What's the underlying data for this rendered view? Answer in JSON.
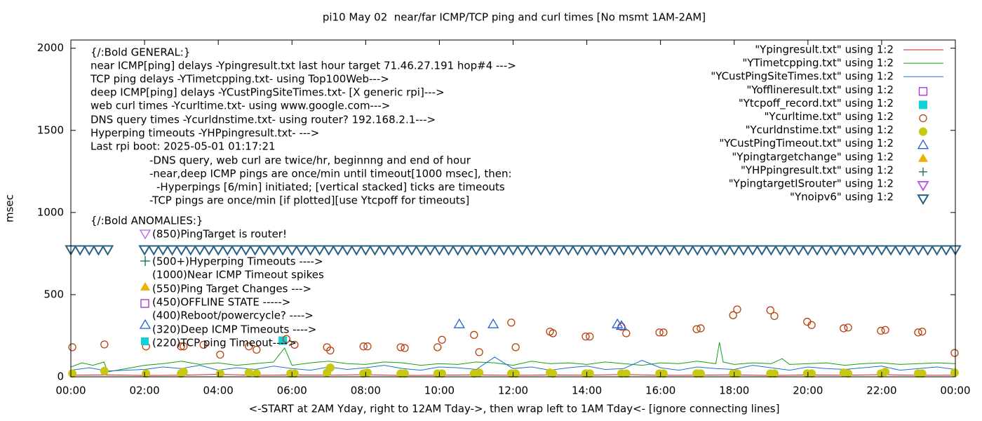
{
  "chart_data": {
    "type": "line",
    "title": "pi10 May 02  near/far ICMP/TCP ping and curl times [No msmt 1AM-2AM]",
    "xlabel": "<-START at 2AM Yday, right to 12AM Tday->, then wrap left to 1AM Tday<- [ignore connecting lines]",
    "ylabel": "msec",
    "xlim": [
      0,
      24
    ],
    "ylim": [
      0,
      2050
    ],
    "xticks": [
      {
        "value": 0,
        "label": "00:00"
      },
      {
        "value": 2,
        "label": "02:00"
      },
      {
        "value": 4,
        "label": "04:00"
      },
      {
        "value": 6,
        "label": "06:00"
      },
      {
        "value": 8,
        "label": "08:00"
      },
      {
        "value": 10,
        "label": "10:00"
      },
      {
        "value": 12,
        "label": "12:00"
      },
      {
        "value": 14,
        "label": "14:00"
      },
      {
        "value": 16,
        "label": "16:00"
      },
      {
        "value": 18,
        "label": "18:00"
      },
      {
        "value": 20,
        "label": "20:00"
      },
      {
        "value": 22,
        "label": "22:00"
      },
      {
        "value": 24,
        "label": "00:00"
      }
    ],
    "yticks": [
      0,
      500,
      1000,
      1500,
      2000
    ],
    "grid": false,
    "legend": "top-right",
    "annotations": [
      "{/:Bold GENERAL:}",
      "near ICMP[ping] delays -Ypingresult.txt last hour target 71.46.27.191 hop#4 --->",
      "TCP ping delays -YTimetcpping.txt- using Top100Web--->",
      "deep ICMP[ping] delays -YCustPingSiteTimes.txt- [X generic rpi]--->",
      "web curl times -Ycurltime.txt- using www.google.com--->",
      "DNS query times -Ycurldnstime.txt- using router? 192.168.2.1--->",
      "Hyperping timeouts -YHPpingresult.txt- --->",
      "Last rpi boot: 2025-05-01 01:17:21",
      "-DNS query, web curl are twice/hr, beginnng and end of hour",
      "-near,deep ICMP pings are once/min until timeout[1000 msec], then:",
      "-Hyperpings [6/min] initiated; [vertical stacked] ticks are timeouts",
      "-TCP pings are once/min [if plotted][use Ytcpoff for timeouts]",
      "{/:Bold ANOMALIES:}",
      "(850)PingTarget is router!",
      "(500+)Hyperping Timeouts ---->",
      "(1000)Near ICMP Timeout spikes",
      "(550)Ping Target Changes --->",
      "(450)OFFLINE STATE ----->",
      "(400)Reboot/powercycle? ---->",
      "(320)Deep ICMP Timeouts ---->",
      "(220)TCP ping Timeout---->"
    ],
    "series": [
      {
        "name": "\"Ypingresult.txt\" using 1:2",
        "color": "#d62020",
        "style": "line",
        "x": [
          0,
          1,
          2,
          3,
          4,
          5,
          6,
          7,
          8,
          9,
          10,
          11,
          12,
          13,
          14,
          15,
          16,
          17,
          18,
          19,
          20,
          21,
          22,
          23,
          24
        ],
        "values": [
          10,
          12,
          8,
          10,
          15,
          9,
          11,
          10,
          13,
          8,
          10,
          12,
          9,
          11,
          10,
          14,
          9,
          10,
          12,
          8,
          11,
          10,
          13,
          9,
          10
        ]
      },
      {
        "name": "\"YTimetcpping.txt\" using 1:2",
        "color": "#12a012",
        "style": "line",
        "x": [
          0,
          0.3,
          0.6,
          0.9,
          1.0,
          2.0,
          2.5,
          3,
          3.5,
          4,
          4.5,
          5,
          5.5,
          5.8,
          6,
          6.5,
          7,
          7.5,
          8,
          8.5,
          9,
          9.5,
          10,
          10.5,
          11,
          11.5,
          12,
          12.5,
          13,
          13.5,
          14,
          14.5,
          15,
          15.5,
          16,
          16.5,
          17,
          17.5,
          17.6,
          17.7,
          18,
          18.5,
          19,
          19.3,
          19.5,
          20,
          20.5,
          21,
          21.5,
          22,
          22.5,
          23,
          23.5,
          24
        ],
        "values": [
          60,
          85,
          70,
          90,
          30,
          70,
          80,
          95,
          75,
          85,
          70,
          80,
          90,
          175,
          70,
          85,
          95,
          80,
          75,
          90,
          85,
          70,
          80,
          75,
          90,
          85,
          70,
          95,
          80,
          85,
          75,
          90,
          80,
          70,
          85,
          80,
          95,
          80,
          210,
          90,
          75,
          85,
          80,
          110,
          75,
          80,
          85,
          70,
          80,
          85,
          75,
          80,
          85,
          80
        ]
      },
      {
        "name": "\"YCustPingSiteTimes.txt\" using 1:2",
        "color": "#1f6fd0",
        "style": "line",
        "x": [
          0,
          0.5,
          1,
          2,
          2.5,
          3,
          3.5,
          4,
          4.5,
          5,
          5.5,
          6,
          6.5,
          7,
          7.5,
          8,
          8.5,
          9,
          9.5,
          10,
          10.5,
          11,
          11.5,
          12,
          12.5,
          13,
          13.5,
          14,
          14.5,
          15,
          15.5,
          16,
          16.5,
          17,
          17.5,
          18,
          18.5,
          19,
          19.5,
          20,
          20.5,
          21,
          21.5,
          22,
          22.5,
          23,
          23.5,
          24
        ],
        "values": [
          40,
          55,
          35,
          45,
          60,
          50,
          70,
          40,
          55,
          45,
          65,
          50,
          40,
          60,
          45,
          55,
          70,
          50,
          40,
          60,
          55,
          45,
          120,
          50,
          60,
          40,
          55,
          65,
          45,
          50,
          100,
          55,
          40,
          60,
          50,
          45,
          70,
          55,
          40,
          60,
          50,
          45,
          55,
          65,
          40,
          50,
          60,
          45
        ]
      },
      {
        "name": "\"Yofflineresult.txt\" using 1:2",
        "color": "#9b30d0",
        "style": "points",
        "marker": "square-open",
        "x": [],
        "values": []
      },
      {
        "name": "\"Ytcpoff_record.txt\" using 1:2",
        "color": "#10d0d8",
        "style": "points",
        "marker": "square-filled",
        "x": [
          5.75
        ],
        "values": [
          220
        ]
      },
      {
        "name": "\"Ycurltime.txt\" using 1:2",
        "color": "#b8400e",
        "style": "points",
        "marker": "circle-open",
        "x": [
          0.04,
          0.91,
          2.04,
          2.99,
          3.06,
          3.6,
          4.05,
          4.83,
          5.04,
          5.85,
          6.07,
          6.95,
          7.04,
          7.94,
          8.05,
          8.95,
          9.06,
          9.95,
          10.07,
          10.94,
          11.08,
          11.95,
          12.07,
          13.0,
          13.08,
          13.97,
          14.08,
          14.94,
          15.07,
          15.97,
          16.08,
          16.98,
          17.09,
          17.97,
          18.08,
          18.98,
          19.09,
          19.98,
          20.1,
          20.97,
          21.09,
          21.98,
          22.1,
          22.99,
          23.1,
          23.98
        ],
        "values": [
          180,
          197,
          185,
          185,
          185,
          195,
          135,
          185,
          165,
          230,
          195,
          180,
          160,
          185,
          185,
          180,
          175,
          180,
          225,
          255,
          150,
          330,
          180,
          275,
          265,
          245,
          245,
          305,
          265,
          270,
          270,
          290,
          295,
          375,
          410,
          405,
          370,
          335,
          315,
          295,
          300,
          280,
          285,
          270,
          275,
          145
        ]
      },
      {
        "name": "\"Ycurldnstime.txt\" using 1:2",
        "color": "#c8c814",
        "style": "points",
        "marker": "circle-filled",
        "x": [
          0.04,
          0.91,
          2.04,
          2.99,
          3.06,
          4.05,
          4.83,
          5.04,
          5.96,
          6.07,
          6.95,
          7.04,
          7.94,
          8.05,
          8.95,
          9.06,
          9.95,
          10.07,
          10.94,
          11.08,
          11.95,
          12.07,
          13.0,
          13.08,
          13.97,
          14.08,
          14.94,
          15.07,
          15.97,
          16.08,
          16.98,
          17.09,
          17.97,
          18.08,
          18.98,
          19.09,
          19.98,
          20.1,
          20.97,
          21.09,
          21.98,
          22.1,
          22.99,
          23.1,
          23.98
        ],
        "values": [
          20,
          35,
          20,
          20,
          30,
          20,
          25,
          20,
          20,
          20,
          25,
          55,
          20,
          25,
          20,
          20,
          20,
          20,
          20,
          25,
          20,
          20,
          25,
          20,
          20,
          20,
          20,
          20,
          20,
          20,
          20,
          20,
          20,
          20,
          20,
          20,
          20,
          20,
          25,
          20,
          20,
          30,
          20,
          20,
          25
        ]
      },
      {
        "name": "\"YCustPingTimeout.txt\" using 1:2",
        "color": "#2a5cd0",
        "style": "points",
        "marker": "triangle-up-open",
        "x": [
          10.54,
          11.46,
          14.83,
          14.94
        ],
        "values": [
          320,
          320,
          320,
          310
        ]
      },
      {
        "name": "\"Ypingtargetchange\" using 1:2",
        "color": "#f0b000",
        "style": "points",
        "marker": "triangle-up-filled",
        "x": [],
        "values": []
      },
      {
        "name": "\"YHPpingresult.txt\" using 1:2",
        "color": "#0a6a3a",
        "style": "points",
        "marker": "plus",
        "x": [],
        "values": []
      },
      {
        "name": "\"YpingtargetISrouter\" using 1:2",
        "color": "#b860e8",
        "style": "points",
        "marker": "triangle-down-open",
        "x": [],
        "values": []
      },
      {
        "name": "\"Ynoipv6\" using 1:2",
        "color": "#2b5f82",
        "style": "points",
        "marker": "triangle-down-open",
        "x": [
          0,
          0.25,
          0.5,
          0.75,
          1.0,
          2,
          2.25,
          2.5,
          2.75,
          3,
          3.25,
          3.5,
          3.75,
          4,
          4.25,
          4.5,
          4.75,
          5,
          5.25,
          5.5,
          5.75,
          6,
          6.25,
          6.5,
          6.75,
          7,
          7.25,
          7.5,
          7.75,
          8,
          8.25,
          8.5,
          8.75,
          9,
          9.25,
          9.5,
          9.75,
          10,
          10.25,
          10.5,
          10.75,
          11,
          11.25,
          11.5,
          11.75,
          12,
          12.25,
          12.5,
          12.75,
          13,
          13.25,
          13.5,
          13.75,
          14,
          14.25,
          14.5,
          14.75,
          15,
          15.25,
          15.5,
          15.75,
          16,
          16.25,
          16.5,
          16.75,
          17,
          17.25,
          17.5,
          17.75,
          18,
          18.25,
          18.5,
          18.75,
          19,
          19.25,
          19.5,
          19.75,
          20,
          20.25,
          20.5,
          20.75,
          21,
          21.25,
          21.5,
          21.75,
          22,
          22.25,
          22.5,
          22.75,
          23,
          23.25,
          23.5,
          23.75,
          24
        ],
        "values": [
          775,
          775,
          775,
          775,
          775,
          775,
          775,
          775,
          775,
          775,
          775,
          775,
          775,
          775,
          775,
          775,
          775,
          775,
          775,
          775,
          775,
          775,
          775,
          775,
          775,
          775,
          775,
          775,
          775,
          775,
          775,
          775,
          775,
          775,
          775,
          775,
          775,
          775,
          775,
          775,
          775,
          775,
          775,
          775,
          775,
          775,
          775,
          775,
          775,
          775,
          775,
          775,
          775,
          775,
          775,
          775,
          775,
          775,
          775,
          775,
          775,
          775,
          775,
          775,
          775,
          775,
          775,
          775,
          775,
          775,
          775,
          775,
          775,
          775,
          775,
          775,
          775,
          775,
          775,
          775,
          775,
          775,
          775,
          775,
          775,
          775,
          775,
          775,
          775,
          775,
          775,
          775,
          775,
          775
        ]
      }
    ]
  }
}
